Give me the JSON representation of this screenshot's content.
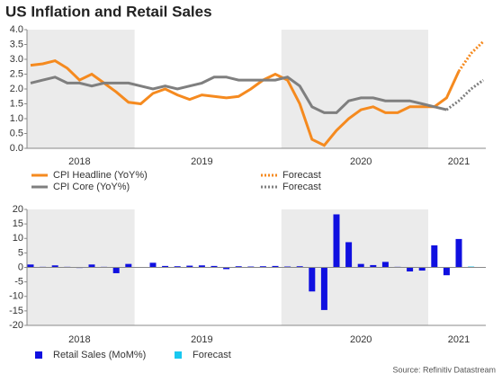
{
  "title": "US Inflation and Retail Sales",
  "source": "Source: Refinitiv Datastream",
  "chart_data": [
    {
      "type": "line",
      "categories": [
        null,
        null,
        null,
        null,
        "2018",
        null,
        null,
        null,
        null,
        null,
        null,
        null,
        null,
        null,
        "2019",
        null,
        null,
        null,
        null,
        null,
        null,
        null,
        null,
        null,
        null,
        null,
        null,
        "2020",
        null,
        null,
        null,
        null,
        null,
        null,
        null,
        "2021",
        null,
        null
      ],
      "ylim": [
        0,
        4
      ],
      "yticks": [
        {
          "value": 0,
          "label": "0.0"
        },
        0.5,
        {
          "value": 1,
          "label": "1.0"
        },
        1.5,
        {
          "value": 2,
          "label": "2.0"
        },
        2.5,
        {
          "value": 3,
          "label": "3.0"
        },
        3.5,
        {
          "value": 4,
          "label": "4.0"
        }
      ],
      "series": [
        {
          "name": "CPI Headline (YoY%)",
          "color": "#f58a1f",
          "dash": false,
          "values": [
            2.8,
            2.85,
            2.95,
            2.7,
            2.3,
            2.5,
            2.2,
            1.9,
            1.55,
            1.5,
            1.85,
            2.0,
            1.8,
            1.65,
            1.8,
            1.75,
            1.7,
            1.75,
            2.0,
            2.3,
            2.5,
            2.3,
            1.5,
            0.3,
            0.1,
            0.6,
            1.0,
            1.3,
            1.4,
            1.2,
            1.2,
            1.4,
            1.4,
            1.4,
            1.7,
            2.6,
            null,
            null
          ]
        },
        {
          "name": "Forecast",
          "color": "#f58a1f",
          "dash": true,
          "values": [
            null,
            null,
            null,
            null,
            null,
            null,
            null,
            null,
            null,
            null,
            null,
            null,
            null,
            null,
            null,
            null,
            null,
            null,
            null,
            null,
            null,
            null,
            null,
            null,
            null,
            null,
            null,
            null,
            null,
            null,
            null,
            null,
            null,
            null,
            null,
            2.6,
            3.2,
            3.6
          ]
        },
        {
          "name": "CPI Core (YoY%)",
          "color": "#7f7f7f",
          "dash": false,
          "values": [
            2.2,
            2.3,
            2.4,
            2.2,
            2.2,
            2.1,
            2.2,
            2.2,
            2.2,
            2.1,
            2.0,
            2.1,
            2.0,
            2.1,
            2.2,
            2.4,
            2.4,
            2.3,
            2.3,
            2.3,
            2.3,
            2.4,
            2.1,
            1.4,
            1.2,
            1.2,
            1.6,
            1.7,
            1.7,
            1.6,
            1.6,
            1.6,
            1.5,
            1.4,
            1.3,
            null,
            null,
            null
          ]
        },
        {
          "name": "Forecast",
          "color": "#7f7f7f",
          "dash": true,
          "values": [
            null,
            null,
            null,
            null,
            null,
            null,
            null,
            null,
            null,
            null,
            null,
            null,
            null,
            null,
            null,
            null,
            null,
            null,
            null,
            null,
            null,
            null,
            null,
            null,
            null,
            null,
            null,
            null,
            null,
            null,
            null,
            null,
            null,
            null,
            1.3,
            1.6,
            2.0,
            2.3
          ]
        }
      ]
    },
    {
      "type": "bar",
      "categories": [
        null,
        null,
        null,
        null,
        "2018",
        null,
        null,
        null,
        null,
        null,
        null,
        null,
        null,
        null,
        "2019",
        null,
        null,
        null,
        null,
        null,
        null,
        null,
        null,
        null,
        null,
        null,
        null,
        "2020",
        null,
        null,
        null,
        null,
        null,
        null,
        null,
        "2021",
        null,
        null
      ],
      "ylim": [
        -20,
        20
      ],
      "yticks": [
        -20,
        -15,
        -10,
        -5,
        0,
        5,
        10,
        15,
        20
      ],
      "series": [
        {
          "name": "Retail Sales (MoM%)",
          "color": "#1010e0",
          "values": [
            1.0,
            0.2,
            0.7,
            0.2,
            -0.2,
            1.0,
            0.2,
            -2.0,
            1.2,
            0.1,
            1.6,
            0.5,
            0.4,
            0.6,
            0.7,
            0.5,
            -0.6,
            0.4,
            0.3,
            0.4,
            0.5,
            0.3,
            0.4,
            -8.3,
            -14.7,
            18.3,
            8.7,
            1.2,
            0.8,
            1.9,
            0.2,
            -1.4,
            -1.1,
            7.6,
            -2.7,
            9.8,
            null,
            null
          ]
        },
        {
          "name": "Forecast",
          "color": "#19c8f0",
          "values": [
            null,
            null,
            null,
            null,
            null,
            null,
            null,
            null,
            null,
            null,
            null,
            null,
            null,
            null,
            null,
            null,
            null,
            null,
            null,
            null,
            null,
            null,
            null,
            null,
            null,
            null,
            null,
            null,
            null,
            null,
            null,
            null,
            null,
            null,
            null,
            null,
            0.3,
            null
          ]
        }
      ]
    }
  ]
}
